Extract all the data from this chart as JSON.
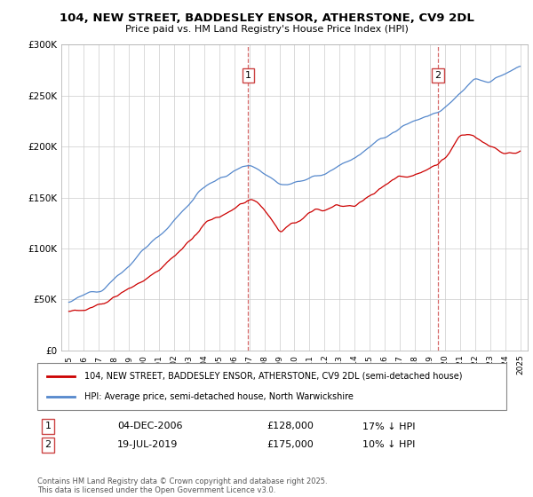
{
  "title": "104, NEW STREET, BADDESLEY ENSOR, ATHERSTONE, CV9 2DL",
  "subtitle": "Price paid vs. HM Land Registry's House Price Index (HPI)",
  "legend_line1": "104, NEW STREET, BADDESLEY ENSOR, ATHERSTONE, CV9 2DL (semi-detached house)",
  "legend_line2": "HPI: Average price, semi-detached house, North Warwickshire",
  "footnote": "Contains HM Land Registry data © Crown copyright and database right 2025.\nThis data is licensed under the Open Government Licence v3.0.",
  "marker1_date": "04-DEC-2006",
  "marker1_price": "£128,000",
  "marker1_hpi": "17% ↓ HPI",
  "marker1_x": 2006.92,
  "marker2_date": "19-JUL-2019",
  "marker2_price": "£175,000",
  "marker2_hpi": "10% ↓ HPI",
  "marker2_x": 2019.54,
  "hpi_color": "#5588cc",
  "price_color": "#cc0000",
  "dashed_color": "#cc4444",
  "ylim": [
    0,
    300000
  ],
  "xlim": [
    1994.5,
    2025.5
  ],
  "yticks": [
    0,
    50000,
    100000,
    150000,
    200000,
    250000,
    300000
  ],
  "ytick_labels": [
    "£0",
    "£50K",
    "£100K",
    "£150K",
    "£200K",
    "£250K",
    "£300K"
  ],
  "xticks": [
    1995,
    1996,
    1997,
    1998,
    1999,
    2000,
    2001,
    2002,
    2003,
    2004,
    2005,
    2006,
    2007,
    2008,
    2009,
    2010,
    2011,
    2012,
    2013,
    2014,
    2015,
    2016,
    2017,
    2018,
    2019,
    2020,
    2021,
    2022,
    2023,
    2024,
    2025
  ],
  "marker1_num_y": 270000,
  "marker2_num_y": 270000
}
